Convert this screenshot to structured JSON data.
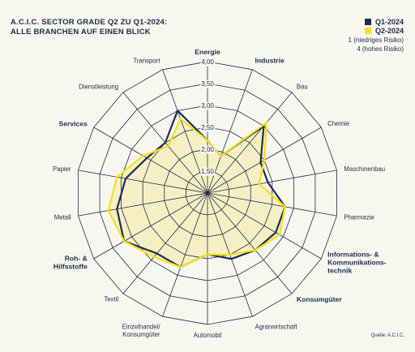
{
  "header": {
    "title_line1": "A.C.I.C. SECTOR GRADE Q2 ZU Q1-2024:",
    "title_line2": "ALLE BRANCHEN AUF EINEN BLICK"
  },
  "legend": {
    "items": [
      {
        "label": "Q1-2024",
        "color": "#1f2d4d"
      },
      {
        "label": "Q2-2024",
        "color": "#f3e21c"
      }
    ],
    "note_line1": "1 (niedriges Risiko)",
    "note_line2": "4 (hohes Risiko)"
  },
  "source": "Quelle: A.C.I.C.",
  "colors": {
    "grid": "#1f2d4d",
    "q1_line": "#1f2d4d",
    "q2_line": "#f3e21c",
    "fill": "#f7efc4",
    "background": "#f7f6ef"
  },
  "chart_data": {
    "type": "radar",
    "title": "A.C.I.C. SECTOR GRADE Q2 ZU Q1-2024: ALLE BRANCHEN AUF EINEN BLICK",
    "categories": [
      "Energie",
      "Industrie",
      "Bau",
      "Chemie",
      "Maschinenbau",
      "Pharmazie",
      "Informations- & Kommunikations- technik",
      "Konsumgüter",
      "Agrarwirtschaft",
      "Automobil",
      "Einzelhandel/ Konsumgüter",
      "Textil",
      "Roh- & Hilfsstoffe",
      "Metall",
      "Papier",
      "Services",
      "Dienstleistung",
      "Transport"
    ],
    "bold_categories": [
      "Energie",
      "Industrie",
      "Informations- & Kommunikations- technik",
      "Konsumgüter",
      "Roh- & Hilfsstoffe",
      "Services"
    ],
    "scale_min": 1,
    "rmax": 4.0,
    "ticks": [
      1.5,
      2.0,
      2.5,
      3.0,
      3.5,
      4.0
    ],
    "tick_labels": [
      "1,50",
      "2,00",
      "2,50",
      "3,00",
      "3,50",
      "4,00"
    ],
    "series": [
      {
        "name": "Q1-2024",
        "values": [
          2.2,
          1.9,
          3.0,
          2.4,
          2.4,
          2.8,
          2.8,
          2.7,
          2.6,
          2.4,
          2.8,
          2.8,
          3.2,
          3.1,
          2.9,
          2.6,
          2.5,
          3.0
        ]
      },
      {
        "name": "Q2-2024",
        "values": [
          2.2,
          1.9,
          3.1,
          2.5,
          2.2,
          2.8,
          2.9,
          2.7,
          2.5,
          2.4,
          2.8,
          2.9,
          3.2,
          3.3,
          3.1,
          2.7,
          2.4,
          2.8
        ]
      }
    ]
  }
}
